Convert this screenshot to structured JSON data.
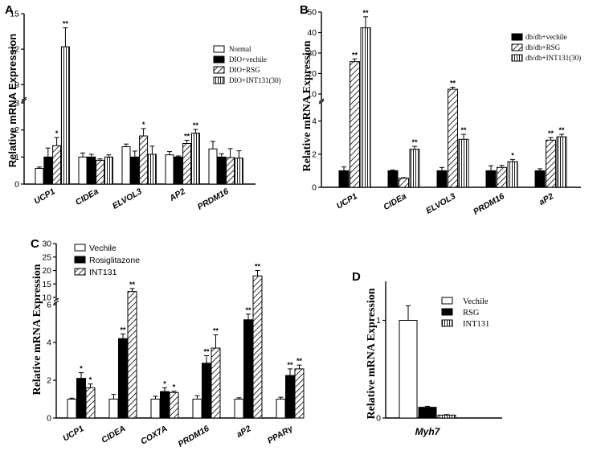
{
  "patterns": {
    "white": "#ffffff",
    "black": "#000000",
    "diag": "diag",
    "vert": "vert"
  },
  "chart_data": [
    {
      "panel": "A",
      "type": "bar",
      "ylabel": "Relative mRNA Expression",
      "categories": [
        "UCP1",
        "CIDEa",
        "ELVOL3",
        "AP2",
        "PRDM16"
      ],
      "y_ticks_lower": [
        "0",
        "1",
        "2",
        "3"
      ],
      "y_ticks_upper": [
        "9",
        "12",
        "15"
      ],
      "series": [
        {
          "name": "Normal",
          "pattern": "white",
          "values": [
            0.58,
            1.0,
            1.38,
            1.08,
            1.3
          ],
          "errors": [
            0.05,
            0.15,
            0.1,
            0.12,
            0.28
          ],
          "sig": [
            "",
            "",
            "",
            "",
            ""
          ]
        },
        {
          "name": "DIO+vechile",
          "pattern": "black",
          "values": [
            1.0,
            1.0,
            1.0,
            1.0,
            1.0
          ],
          "errors": [
            0.33,
            0.1,
            0.22,
            0.04,
            0.12
          ],
          "sig": [
            "",
            "",
            "",
            "",
            ""
          ]
        },
        {
          "name": "DIO+RSG",
          "pattern": "diag",
          "values": [
            1.42,
            0.88,
            1.78,
            1.5,
            0.98
          ],
          "errors": [
            0.3,
            0.05,
            0.27,
            0.12,
            0.33
          ],
          "sig": [
            "*",
            "",
            "*",
            "**",
            ""
          ]
        },
        {
          "name": "DIO+INT131(30)",
          "pattern": "vert",
          "values": [
            12.2,
            1.0,
            1.1,
            1.88,
            0.96
          ],
          "errors": [
            1.6,
            0.08,
            0.3,
            0.14,
            0.27
          ],
          "sig": [
            "**",
            "",
            "",
            "**",
            ""
          ]
        }
      ]
    },
    {
      "panel": "B",
      "type": "bar",
      "ylabel": "Relative mRNA Expression",
      "categories": [
        "UCP1",
        "CIDEa",
        "ELVOL3",
        "PRDM16",
        "aP2"
      ],
      "y_ticks_lower": [
        "0",
        "2",
        "4"
      ],
      "y_ticks_upper": [
        "10",
        "20",
        "30",
        "40",
        "50"
      ],
      "series": [
        {
          "name": "db/db+vechile",
          "pattern": "black",
          "values": [
            1.0,
            1.0,
            1.0,
            1.0,
            1.0
          ],
          "errors": [
            0.23,
            0.04,
            0.2,
            0.3,
            0.12
          ],
          "sig": [
            "",
            "",
            "",
            "",
            ""
          ]
        },
        {
          "name": "db/db+RSG",
          "pattern": "diag",
          "values": [
            25.8,
            0.55,
            12.3,
            1.2,
            2.85
          ],
          "errors": [
            1.3,
            0.03,
            1.0,
            0.12,
            0.15
          ],
          "sig": [
            "**",
            "",
            "**",
            "",
            "**"
          ]
        },
        {
          "name": "db/db+INT131(30)",
          "pattern": "vert",
          "values": [
            42.3,
            2.3,
            2.9,
            1.55,
            3.05
          ],
          "errors": [
            5.4,
            0.17,
            0.3,
            0.13,
            0.15
          ],
          "sig": [
            "**",
            "**",
            "**",
            "*",
            "**"
          ]
        }
      ]
    },
    {
      "panel": "C",
      "type": "bar",
      "ylabel": "Relative mRNA Expression",
      "categories": [
        "UCP1",
        "CIDEA",
        "COX7A",
        "PRDM16",
        "aP2",
        "PPARγ"
      ],
      "y_ticks_lower": [
        "0",
        "2",
        "4",
        "6"
      ],
      "y_ticks_upper": [
        "10",
        "15",
        "20",
        "25",
        "30"
      ],
      "series": [
        {
          "name": "Vechile",
          "pattern": "white",
          "values": [
            1.0,
            1.0,
            1.0,
            1.0,
            1.0,
            1.0
          ],
          "errors": [
            0.05,
            0.25,
            0.15,
            0.18,
            0.07,
            0.1
          ],
          "sig": [
            "",
            "",
            "",
            "",
            "",
            ""
          ]
        },
        {
          "name": "Rosiglitazone",
          "pattern": "black",
          "values": [
            2.1,
            4.2,
            1.4,
            2.9,
            5.2,
            2.25
          ],
          "errors": [
            0.3,
            0.25,
            0.2,
            0.4,
            0.3,
            0.35
          ],
          "sig": [
            "*",
            "**",
            "*",
            "**",
            "**",
            "**"
          ]
        },
        {
          "name": "INT131",
          "pattern": "diag",
          "values": [
            1.6,
            12.2,
            1.35,
            3.7,
            18.0,
            2.6
          ],
          "errors": [
            0.2,
            1.1,
            0.07,
            0.7,
            2.0,
            0.2
          ],
          "sig": [
            "*",
            "**",
            "*",
            "**",
            "**",
            "**"
          ]
        }
      ]
    },
    {
      "panel": "D",
      "type": "bar",
      "ylabel": "Relative mRNA Expression",
      "categories": [
        "Myh7"
      ],
      "y_ticks": [
        "0",
        "1"
      ],
      "series": [
        {
          "name": "Vechile",
          "pattern": "white",
          "values": [
            1.0
          ],
          "errors": [
            0.15
          ],
          "sig": [
            ""
          ]
        },
        {
          "name": "RSG",
          "pattern": "black",
          "values": [
            0.11
          ],
          "errors": [
            0.01
          ],
          "sig": [
            ""
          ]
        },
        {
          "name": "INT131",
          "pattern": "vert",
          "values": [
            0.03
          ],
          "errors": [
            0.005
          ],
          "sig": [
            ""
          ]
        }
      ]
    }
  ]
}
